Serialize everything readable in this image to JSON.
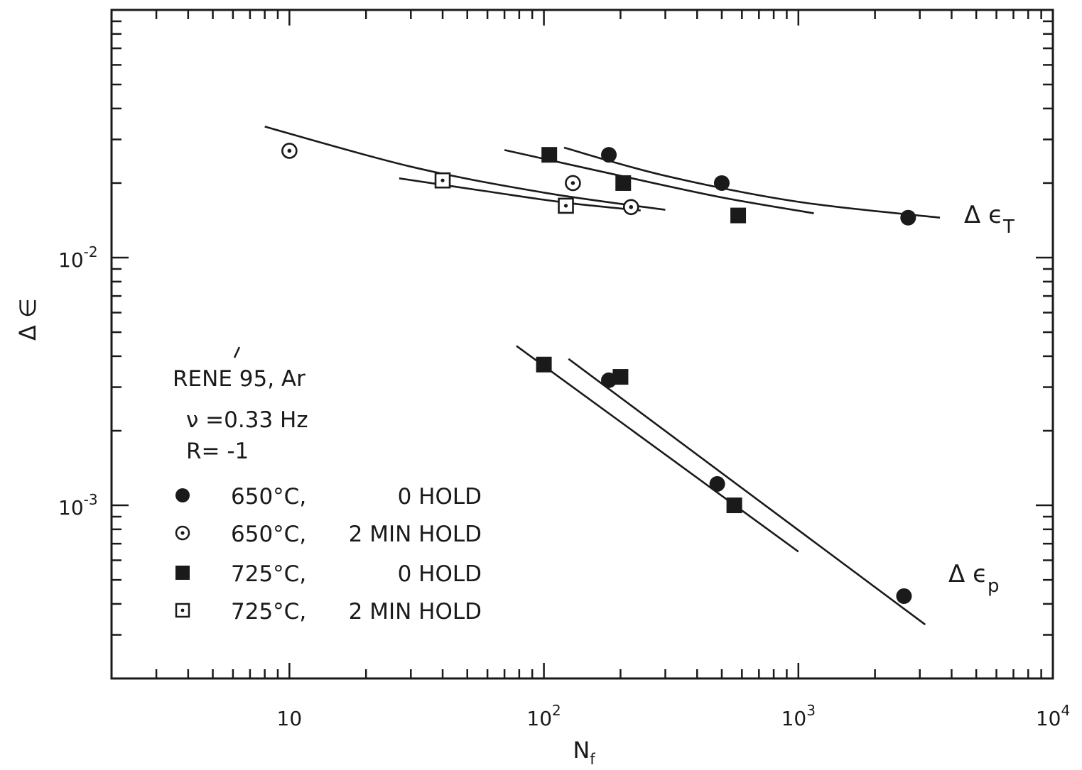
{
  "chart_data": {
    "type": "scatter",
    "x_scale": "log",
    "y_scale": "log",
    "xlim": [
      2,
      10000
    ],
    "ylim": [
      0.0002,
      0.1
    ],
    "xlabel": "N_f",
    "ylabel": "Δ ∈",
    "x_tick_labels": [
      {
        "value": 10,
        "base": "10",
        "exp": ""
      },
      {
        "value": 100,
        "base": "10",
        "exp": "2"
      },
      {
        "value": 1000,
        "base": "10",
        "exp": "3"
      },
      {
        "value": 10000,
        "base": "10",
        "exp": "4"
      }
    ],
    "y_tick_labels": [
      {
        "value": 0.01,
        "base": "10",
        "exp": "-2"
      },
      {
        "value": 0.001,
        "base": "10",
        "exp": "-3"
      }
    ],
    "info_box": {
      "material": "RENE 95, Ar",
      "frequency": "ν =0.33 Hz",
      "ratio": "R= -1"
    },
    "series": [
      {
        "name": "650°C, 0 HOLD",
        "legend_temp": "650°C,",
        "legend_hold": "0 HOLD",
        "marker": "filled-circle",
        "points": [
          [
            180,
            0.026
          ],
          [
            500,
            0.02
          ],
          [
            2700,
            0.0145
          ],
          [
            180,
            0.0032
          ],
          [
            480,
            0.00122
          ],
          [
            2600,
            0.00043
          ]
        ]
      },
      {
        "name": "650°C, 2 MIN HOLD",
        "legend_temp": "650°C,",
        "legend_hold": "2 MIN HOLD",
        "marker": "dotted-circle",
        "points": [
          [
            10,
            0.027
          ],
          [
            130,
            0.02
          ],
          [
            220,
            0.016
          ]
        ]
      },
      {
        "name": "725°C, 0 HOLD",
        "legend_temp": "725°C,",
        "legend_hold": "0 HOLD",
        "marker": "filled-square",
        "points": [
          [
            105,
            0.026
          ],
          [
            205,
            0.02
          ],
          [
            580,
            0.0148
          ],
          [
            100,
            0.0037
          ],
          [
            200,
            0.0033
          ],
          [
            560,
            0.001
          ]
        ]
      },
      {
        "name": "725°C, 2 MIN HOLD",
        "legend_temp": "725°C,",
        "legend_hold": "2 MIN HOLD",
        "marker": "dotted-square",
        "points": [
          [
            40,
            0.0205
          ],
          [
            122,
            0.0162
          ]
        ]
      }
    ],
    "curves": [
      {
        "id": "total-650-0hold",
        "points": [
          [
            120,
            0.0278
          ],
          [
            300,
            0.0214
          ],
          [
            1000,
            0.0168
          ],
          [
            3600,
            0.0145
          ]
        ]
      },
      {
        "id": "total-725-0hold",
        "points": [
          [
            70,
            0.0272
          ],
          [
            200,
            0.0214
          ],
          [
            500,
            0.0175
          ],
          [
            1150,
            0.0151
          ]
        ]
      },
      {
        "id": "total-650-2minhold",
        "points": [
          [
            8,
            0.0338
          ],
          [
            30,
            0.0233
          ],
          [
            100,
            0.0183
          ],
          [
            300,
            0.0156
          ]
        ]
      },
      {
        "id": "total-725-2minhold",
        "points": [
          [
            27,
            0.0209
          ],
          [
            60,
            0.0185
          ],
          [
            120,
            0.0167
          ],
          [
            240,
            0.0155
          ]
        ]
      },
      {
        "id": "plastic-lower",
        "points": [
          [
            78,
            0.0044
          ],
          [
            1000,
            0.00065
          ]
        ]
      },
      {
        "id": "plastic-upper",
        "points": [
          [
            125,
            0.0039
          ],
          [
            3150,
            0.00033
          ]
        ]
      }
    ],
    "curve_labels": [
      {
        "id": "label-total",
        "base": "Δ ϵ",
        "sub": "T"
      },
      {
        "id": "label-plastic",
        "base": "Δ ϵ",
        "sub": "p"
      }
    ],
    "grid": false,
    "legend_position": "lower-left"
  }
}
